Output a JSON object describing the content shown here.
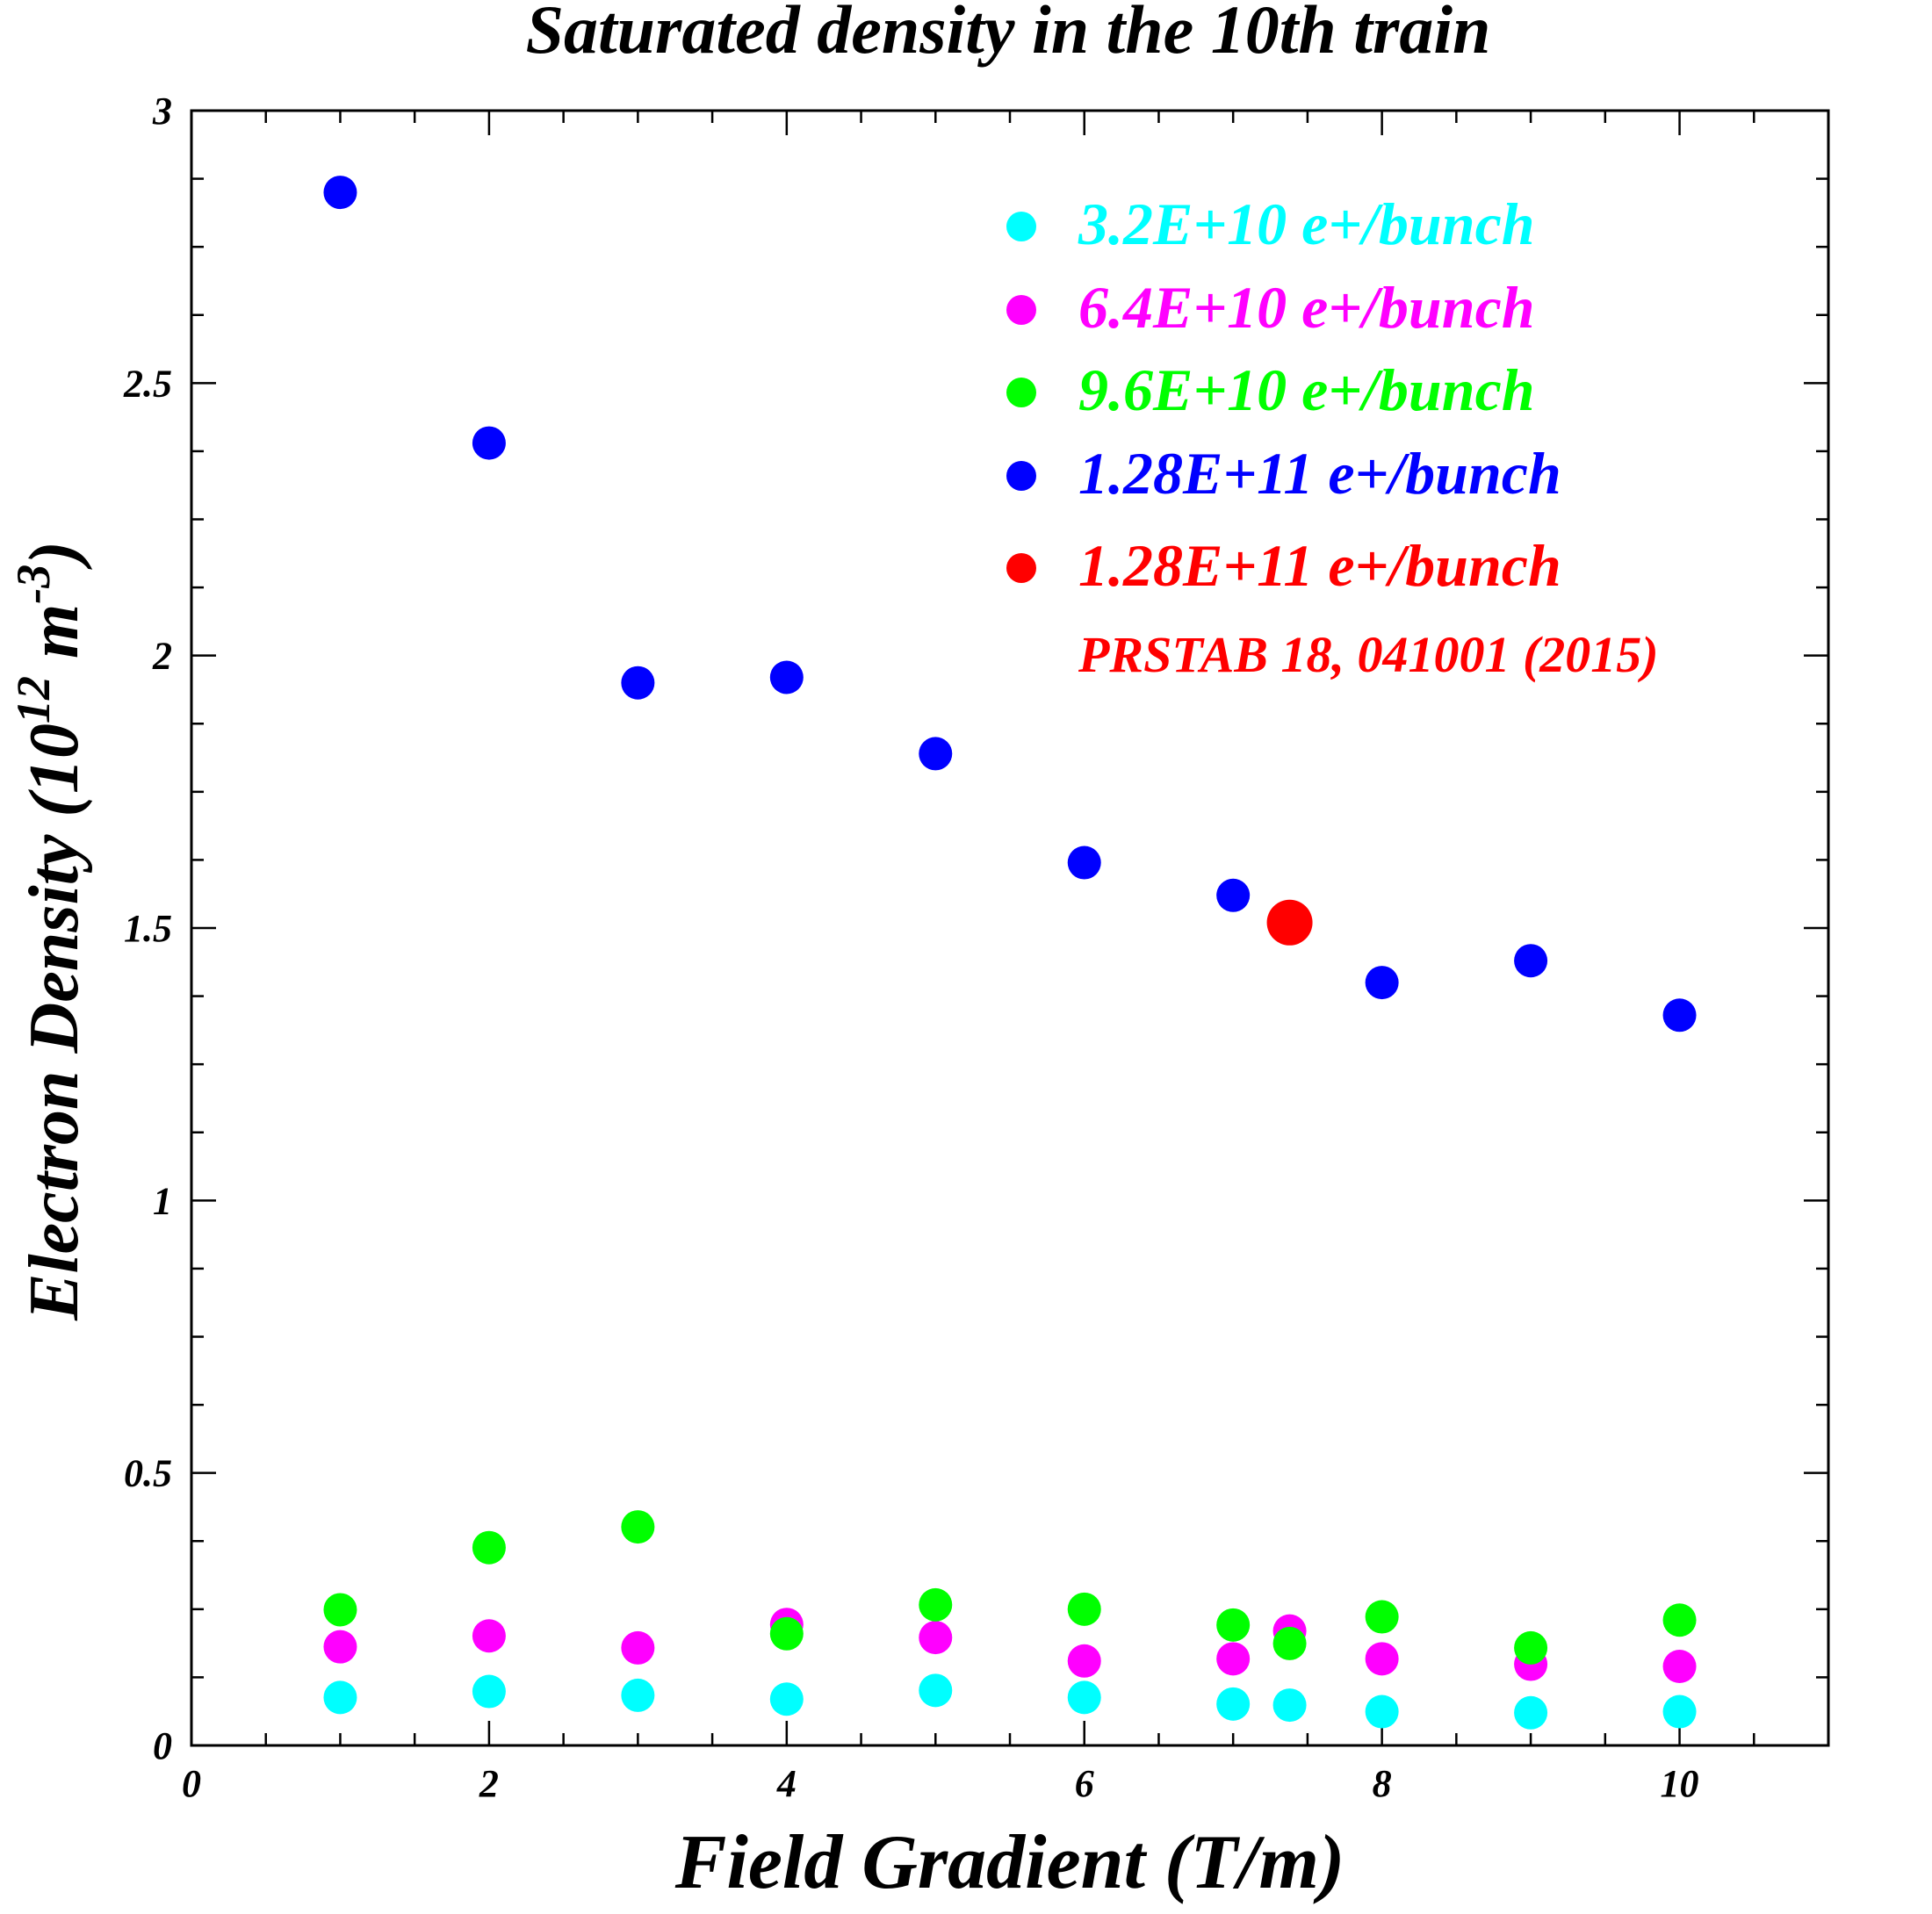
{
  "chart_data": {
    "type": "scatter",
    "title": "Saturated density in the 10th train",
    "xlabel": "Field Gradient (T/m)",
    "ylabel": "Electron Density (10^12 m^-3)",
    "ylabel_parts": {
      "main": "Electron Density (10",
      "exp1": "12",
      "mid": " m",
      "exp2": "-3",
      "end": ")"
    },
    "xlim": [
      0,
      11
    ],
    "ylim": [
      0,
      3
    ],
    "x_ticks": [
      "0",
      "2",
      "4",
      "6",
      "8",
      "10"
    ],
    "y_ticks": [
      "0",
      "0.5",
      "1",
      "1.5",
      "2",
      "2.5",
      "3"
    ],
    "grid": false,
    "legend_position": "top-right",
    "series": [
      {
        "name": "3.2E+10 e+/bunch",
        "color": "#00ffff",
        "x": [
          1,
          2,
          3,
          4,
          5,
          6,
          7,
          7.38,
          8,
          9,
          10
        ],
        "y": [
          0.088,
          0.099,
          0.092,
          0.085,
          0.101,
          0.088,
          0.076,
          0.074,
          0.062,
          0.06,
          0.062
        ]
      },
      {
        "name": "6.4E+10 e+/bunch",
        "color": "#ff00ff",
        "x": [
          1,
          2,
          3,
          4,
          5,
          6,
          7,
          7.38,
          8,
          9,
          10
        ],
        "y": [
          0.181,
          0.201,
          0.179,
          0.222,
          0.198,
          0.155,
          0.159,
          0.21,
          0.159,
          0.149,
          0.145
        ]
      },
      {
        "name": "9.6E+10 e+/bunch",
        "color": "#00ff00",
        "x": [
          1,
          2,
          3,
          4,
          5,
          6,
          7,
          7.38,
          8,
          9,
          10
        ],
        "y": [
          0.249,
          0.363,
          0.401,
          0.205,
          0.258,
          0.25,
          0.221,
          0.187,
          0.236,
          0.179,
          0.23
        ]
      },
      {
        "name": "1.28E+11 e+/bunch",
        "color": "#0000ff",
        "x": [
          1,
          2,
          3,
          4,
          5,
          6,
          7,
          8,
          9,
          10
        ],
        "y": [
          2.85,
          2.39,
          1.95,
          1.96,
          1.82,
          1.62,
          1.56,
          1.4,
          1.44,
          1.34
        ]
      },
      {
        "name": "1.28E+11 e+/bunch",
        "note": "PRSTAB 18, 041001 (2015)",
        "color": "#ff0000",
        "x": [
          7.38
        ],
        "y": [
          1.51
        ]
      }
    ]
  }
}
